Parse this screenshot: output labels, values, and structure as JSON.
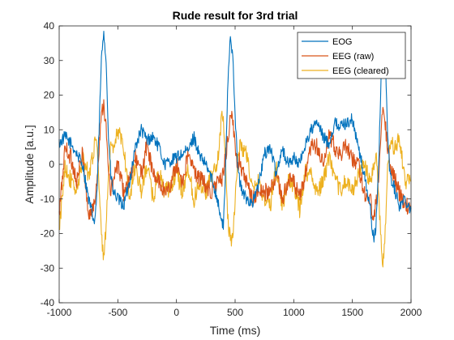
{
  "chart_data": {
    "type": "line",
    "title": "Rude result for 3rd trial",
    "xlabel": "Time (ms)",
    "ylabel": "Amplitude [a.u.]",
    "xlim": [
      -1000,
      2000
    ],
    "ylim": [
      -40,
      40
    ],
    "xticks": [
      -1000,
      -500,
      0,
      500,
      1000,
      1500,
      2000
    ],
    "yticks": [
      -40,
      -30,
      -20,
      -10,
      0,
      10,
      20,
      30,
      40
    ],
    "grid": false,
    "legend_position": "top-right",
    "series": [
      {
        "name": "EOG",
        "color": "#0072BD",
        "x": [
          -1000,
          -950,
          -900,
          -850,
          -800,
          -750,
          -700,
          -680,
          -660,
          -640,
          -620,
          -600,
          -580,
          -560,
          -540,
          -500,
          -450,
          -400,
          -350,
          -300,
          -250,
          -200,
          -150,
          -100,
          -50,
          0,
          50,
          100,
          150,
          200,
          250,
          300,
          350,
          380,
          400,
          420,
          440,
          460,
          480,
          500,
          520,
          540,
          560,
          600,
          650,
          700,
          750,
          800,
          850,
          900,
          950,
          1000,
          1050,
          1100,
          1150,
          1200,
          1250,
          1300,
          1350,
          1400,
          1450,
          1500,
          1550,
          1600,
          1650,
          1680,
          1700,
          1720,
          1740,
          1760,
          1780,
          1800,
          1820,
          1850,
          1900,
          1950,
          2000
        ],
        "values": [
          6,
          8,
          6,
          3,
          0,
          -10,
          -17,
          -10,
          10,
          30,
          39,
          30,
          8,
          -3,
          -8,
          -10,
          -12,
          -5,
          5,
          10,
          7,
          8,
          5,
          0,
          1,
          2,
          3,
          4,
          8,
          2,
          0,
          -4,
          -10,
          -16,
          -18,
          0,
          25,
          37,
          32,
          15,
          0,
          -5,
          -8,
          -10,
          -11,
          -6,
          3,
          5,
          -3,
          5,
          0,
          2,
          0,
          6,
          10,
          12,
          8,
          6,
          12,
          11,
          12,
          13,
          5,
          -3,
          -12,
          -22,
          -18,
          -5,
          20,
          35,
          30,
          10,
          -3,
          -6,
          -12,
          -10,
          -13
        ]
      },
      {
        "name": "EEG (raw)",
        "color": "#D95319",
        "x": [
          -1000,
          -950,
          -900,
          -850,
          -800,
          -750,
          -700,
          -680,
          -660,
          -640,
          -620,
          -600,
          -580,
          -560,
          -540,
          -500,
          -450,
          -400,
          -350,
          -300,
          -250,
          -200,
          -150,
          -100,
          -50,
          0,
          50,
          100,
          150,
          200,
          250,
          300,
          350,
          380,
          400,
          420,
          440,
          460,
          480,
          500,
          520,
          540,
          560,
          600,
          650,
          700,
          750,
          800,
          850,
          900,
          950,
          1000,
          1050,
          1100,
          1150,
          1200,
          1250,
          1300,
          1350,
          1400,
          1450,
          1500,
          1550,
          1600,
          1650,
          1680,
          1700,
          1720,
          1740,
          1760,
          1780,
          1800,
          1820,
          1850,
          1900,
          1950,
          2000
        ],
        "values": [
          -15,
          5,
          2,
          -5,
          3,
          -15,
          -12,
          -5,
          5,
          15,
          18,
          10,
          -2,
          -8,
          -5,
          0,
          -8,
          -5,
          2,
          -3,
          6,
          -3,
          -5,
          -8,
          -6,
          0,
          -5,
          3,
          -2,
          -4,
          -6,
          -8,
          -5,
          -5,
          -3,
          3,
          8,
          14,
          12,
          5,
          0,
          2,
          -2,
          -6,
          -10,
          -8,
          -8,
          -8,
          -3,
          -10,
          -5,
          -5,
          -10,
          -3,
          5,
          5,
          0,
          8,
          5,
          3,
          5,
          2,
          0,
          -8,
          -10,
          -15,
          -12,
          -6,
          8,
          18,
          12,
          5,
          0,
          -3,
          -8,
          -12,
          -13
        ]
      },
      {
        "name": "EEG (cleared)",
        "color": "#EDB120",
        "x": [
          -1000,
          -950,
          -900,
          -850,
          -800,
          -750,
          -700,
          -680,
          -660,
          -640,
          -620,
          -600,
          -580,
          -560,
          -540,
          -500,
          -450,
          -400,
          -350,
          -300,
          -250,
          -200,
          -150,
          -100,
          -50,
          0,
          50,
          100,
          150,
          200,
          250,
          300,
          350,
          380,
          400,
          420,
          440,
          460,
          480,
          500,
          520,
          540,
          560,
          600,
          650,
          700,
          750,
          800,
          850,
          900,
          950,
          1000,
          1050,
          1100,
          1150,
          1200,
          1250,
          1300,
          1350,
          1400,
          1450,
          1500,
          1550,
          1600,
          1650,
          1680,
          1700,
          1720,
          1740,
          1760,
          1780,
          1800,
          1820,
          1850,
          1900,
          1950,
          2000
        ],
        "values": [
          -20,
          0,
          -5,
          -8,
          2,
          -3,
          5,
          8,
          -5,
          -22,
          -26,
          -18,
          -5,
          5,
          3,
          10,
          5,
          -10,
          0,
          -8,
          0,
          -10,
          -2,
          -8,
          -7,
          -2,
          -8,
          -1,
          -10,
          -5,
          -8,
          -3,
          0,
          12,
          15,
          -3,
          -17,
          -22,
          -20,
          -10,
          0,
          5,
          5,
          3,
          -8,
          -5,
          -10,
          -12,
          0,
          -12,
          -5,
          -6,
          -13,
          -2,
          -3,
          -8,
          -5,
          2,
          -5,
          -7,
          -5,
          -8,
          -3,
          0,
          -5,
          -2,
          3,
          -6,
          -20,
          -30,
          -18,
          -2,
          6,
          5,
          7,
          -5,
          -5
        ]
      }
    ]
  }
}
